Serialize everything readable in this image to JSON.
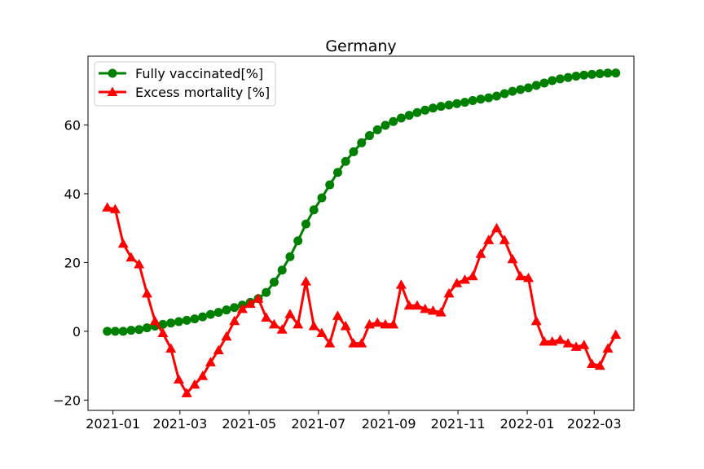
{
  "chart_data": {
    "type": "line",
    "title": "Germany",
    "xlabel": "",
    "ylabel": "",
    "x_ticks": [
      "2021-01",
      "2021-03",
      "2021-05",
      "2021-07",
      "2021-09",
      "2021-11",
      "2022-01",
      "2022-03"
    ],
    "y_ticks": [
      "−20",
      "0",
      "20",
      "40",
      "60"
    ],
    "ylim": [
      -23,
      80
    ],
    "grid": false,
    "legend_position": "top-left",
    "series": [
      {
        "name": "Fully vaccinated[%]",
        "color": "#008000",
        "marker": "circle",
        "x": [
          "2020-12-27",
          "2021-01-03",
          "2021-01-10",
          "2021-01-17",
          "2021-01-24",
          "2021-01-31",
          "2021-02-07",
          "2021-02-14",
          "2021-02-21",
          "2021-02-28",
          "2021-03-07",
          "2021-03-14",
          "2021-03-21",
          "2021-03-28",
          "2021-04-04",
          "2021-04-11",
          "2021-04-18",
          "2021-04-25",
          "2021-05-02",
          "2021-05-09",
          "2021-05-16",
          "2021-05-23",
          "2021-05-30",
          "2021-06-06",
          "2021-06-13",
          "2021-06-20",
          "2021-06-27",
          "2021-07-04",
          "2021-07-11",
          "2021-07-18",
          "2021-07-25",
          "2021-08-01",
          "2021-08-08",
          "2021-08-15",
          "2021-08-22",
          "2021-08-29",
          "2021-09-05",
          "2021-09-12",
          "2021-09-19",
          "2021-09-26",
          "2021-10-03",
          "2021-10-10",
          "2021-10-17",
          "2021-10-24",
          "2021-10-31",
          "2021-11-07",
          "2021-11-14",
          "2021-11-21",
          "2021-11-28",
          "2021-12-05",
          "2021-12-12",
          "2021-12-19",
          "2021-12-26",
          "2022-01-02",
          "2022-01-09",
          "2022-01-16",
          "2022-01-23",
          "2022-01-30",
          "2022-02-06",
          "2022-02-13",
          "2022-02-20",
          "2022-02-27",
          "2022-03-06",
          "2022-03-13",
          "2022-03-20"
        ],
        "values": [
          0,
          0,
          0,
          0.3,
          0.5,
          1,
          1.5,
          2,
          2.4,
          2.8,
          3.2,
          3.6,
          4.2,
          4.9,
          5.5,
          6.2,
          6.9,
          7.6,
          8.4,
          9.5,
          11.3,
          14.3,
          17.8,
          21.7,
          26.3,
          31.2,
          35.3,
          38.8,
          42.6,
          46.2,
          49.4,
          52.2,
          54.8,
          56.9,
          58.6,
          59.9,
          61,
          62,
          62.8,
          63.6,
          64.3,
          64.9,
          65.4,
          65.8,
          66.2,
          66.6,
          67.1,
          67.5,
          67.9,
          68.4,
          69.1,
          69.8,
          70.3,
          70.8,
          71.5,
          72.2,
          72.9,
          73.4,
          73.8,
          74.2,
          74.5,
          74.7,
          74.9,
          75.1,
          75.1
        ]
      },
      {
        "name": "Excess mortality [%]",
        "color": "#ff0000",
        "marker": "triangle",
        "x": [
          "2020-12-27",
          "2021-01-03",
          "2021-01-10",
          "2021-01-17",
          "2021-01-24",
          "2021-01-31",
          "2021-02-07",
          "2021-02-14",
          "2021-02-21",
          "2021-02-28",
          "2021-03-07",
          "2021-03-14",
          "2021-03-21",
          "2021-03-28",
          "2021-04-04",
          "2021-04-11",
          "2021-04-18",
          "2021-04-25",
          "2021-05-02",
          "2021-05-09",
          "2021-05-16",
          "2021-05-23",
          "2021-05-30",
          "2021-06-06",
          "2021-06-13",
          "2021-06-20",
          "2021-06-27",
          "2021-07-04",
          "2021-07-11",
          "2021-07-18",
          "2021-07-25",
          "2021-08-01",
          "2021-08-08",
          "2021-08-15",
          "2021-08-22",
          "2021-08-29",
          "2021-09-05",
          "2021-09-12",
          "2021-09-19",
          "2021-09-26",
          "2021-10-03",
          "2021-10-10",
          "2021-10-17",
          "2021-10-24",
          "2021-10-31",
          "2021-11-07",
          "2021-11-14",
          "2021-11-21",
          "2021-11-28",
          "2021-12-05",
          "2021-12-12",
          "2021-12-19",
          "2021-12-26",
          "2022-01-02",
          "2022-01-09",
          "2022-01-16",
          "2022-01-23",
          "2022-01-30",
          "2022-02-06",
          "2022-02-13",
          "2022-02-20",
          "2022-02-27",
          "2022-03-06",
          "2022-03-13",
          "2022-03-20"
        ],
        "values": [
          36,
          35.5,
          25.5,
          21.5,
          19.5,
          11,
          3,
          -0.5,
          -5,
          -14,
          -18,
          -15.5,
          -13,
          -9,
          -5.5,
          -1.5,
          3,
          6.5,
          8,
          9.5,
          4,
          2,
          0.5,
          5,
          2,
          14.5,
          1.5,
          -0.5,
          -3.5,
          4.5,
          1.5,
          -3.5,
          -3.5,
          2,
          2.5,
          2,
          2,
          13.5,
          7.5,
          7.5,
          6.5,
          6,
          5.5,
          11,
          14,
          15,
          16,
          22.5,
          26.5,
          30,
          26.5,
          21,
          16,
          15.5,
          3,
          -3,
          -3,
          -2.5,
          -3.5,
          -4.5,
          -4,
          -9.5,
          -10,
          -5,
          -1
        ]
      }
    ]
  }
}
